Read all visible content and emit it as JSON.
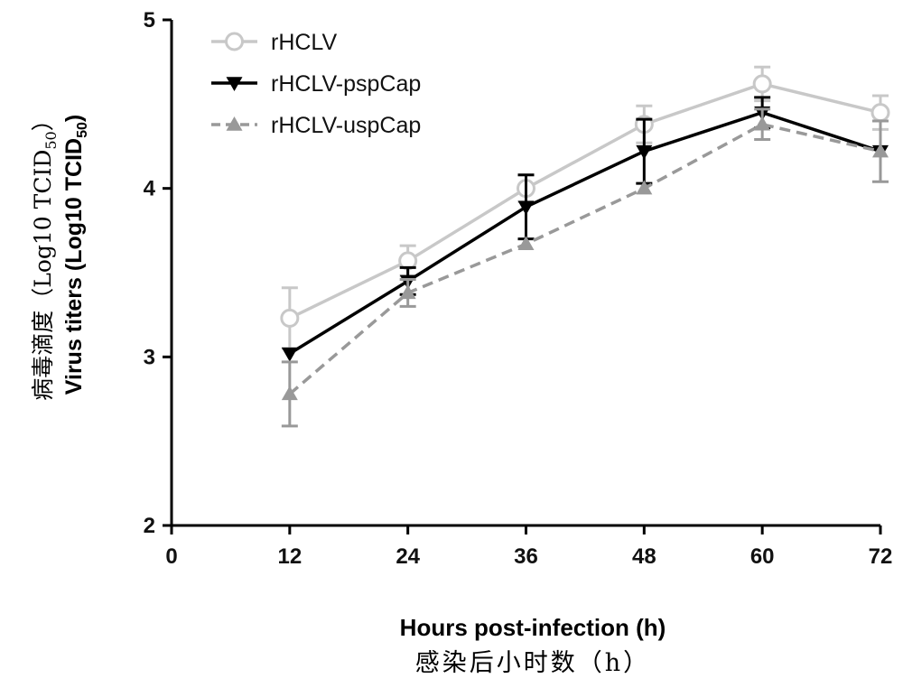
{
  "chart_data": {
    "type": "line",
    "x": [
      12,
      24,
      36,
      48,
      60,
      72
    ],
    "xlim": [
      0,
      72
    ],
    "ylim": [
      2,
      5
    ],
    "x_ticks": [
      "0",
      "12",
      "24",
      "36",
      "48",
      "60",
      "72"
    ],
    "y_ticks": [
      "2",
      "3",
      "4",
      "5"
    ],
    "xlabel": "Hours post-infection (h)",
    "xlabel_cn": "感染后小时数（h）",
    "ylabel_cn": "病毒滴度（Log10 TCID",
    "ylabel_cn_sub": "50",
    "ylabel_cn_end": "）",
    "ylabel": "Virus titers (Log10 TCID",
    "ylabel_sub": "50",
    "ylabel_end": ")",
    "legend_position": "top-left",
    "grid": false,
    "series": [
      {
        "name": "rHCLV",
        "color": "#c8c8c8",
        "marker": "circle-open",
        "line_style": "solid",
        "values": [
          3.23,
          3.57,
          4.0,
          4.38,
          4.62,
          4.45
        ],
        "errors": [
          0.18,
          0.09,
          0.08,
          0.11,
          0.1,
          0.1
        ]
      },
      {
        "name": "rHCLV-pspCap",
        "color": "#000000",
        "marker": "triangle-down",
        "line_style": "solid",
        "values": [
          3.02,
          3.45,
          3.89,
          4.22,
          4.45,
          4.22
        ],
        "errors": [
          0.0,
          0.08,
          0.19,
          0.19,
          0.09,
          0.0
        ]
      },
      {
        "name": "rHCLV-uspCap",
        "color": "#999999",
        "marker": "triangle-up",
        "line_style": "dashed",
        "values": [
          2.78,
          3.38,
          3.67,
          4.0,
          4.38,
          4.22
        ],
        "errors": [
          0.19,
          0.08,
          0.0,
          0.0,
          0.09,
          0.18
        ]
      }
    ]
  }
}
